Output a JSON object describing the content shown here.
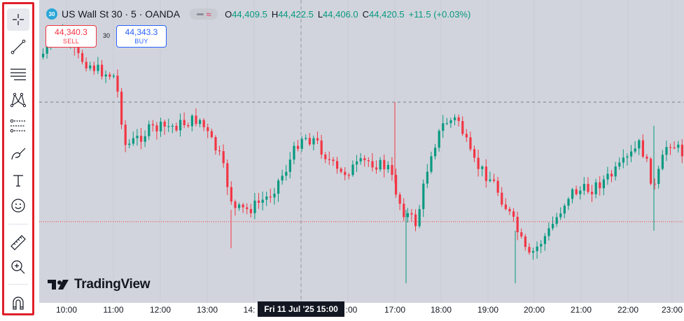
{
  "symbol": {
    "badge": "30",
    "title": "US Wall St 30 · 5 · OANDA"
  },
  "ohlc": {
    "o_label": "O",
    "o": "44,409.5",
    "h_label": "H",
    "h": "44,422.5",
    "l_label": "L",
    "l": "44,406.0",
    "c_label": "C",
    "c": "44,420.5",
    "change": "+11.5 (+0.03%)"
  },
  "trade": {
    "sell_price": "44,340.3",
    "sell_label": "SELL",
    "spread": "30",
    "buy_price": "44,343.3",
    "buy_label": "BUY"
  },
  "toolbar": {
    "tools": [
      "crosshair-icon",
      "trend-line-icon",
      "horizontal-lines-icon",
      "pattern-icon",
      "fib-icon",
      "brush-icon",
      "text-icon",
      "emoji-icon",
      "ruler-icon",
      "zoom-in-icon",
      "magnet-icon"
    ]
  },
  "time_axis": {
    "labels": [
      "10:00",
      "11:00",
      "12:00",
      "13:00",
      "14:",
      ":00",
      "17:00",
      "18:00",
      "19:00",
      "20:00",
      "21:00",
      "22:00",
      "23:00"
    ],
    "crosshair_label": "Fri 11 Jul '25   15:00"
  },
  "brand": {
    "name": "TradingView"
  },
  "colors": {
    "up": "#089981",
    "down": "#f23645",
    "chart_bg": "#d1d4dc",
    "toolbar_highlight": "#e0202a"
  }
}
